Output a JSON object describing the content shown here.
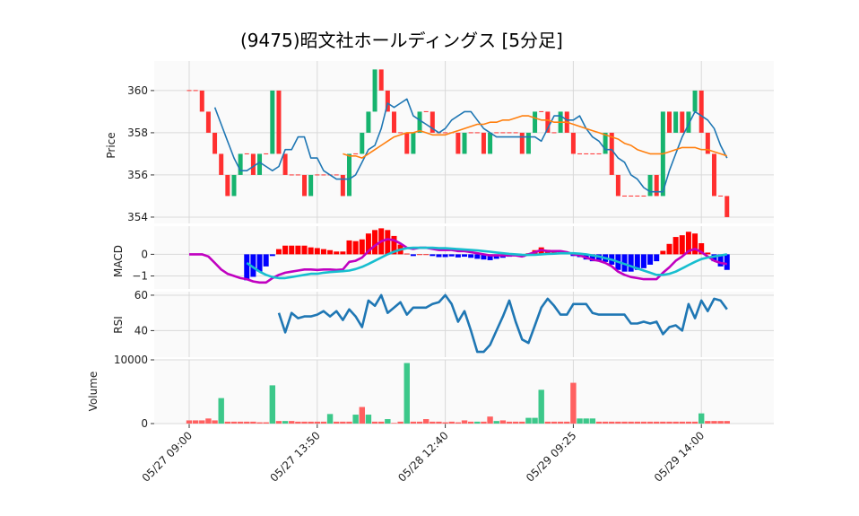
{
  "chart_data": {
    "type": "candlestick",
    "title": "(9475)昭文社ホールディングス [5分足]",
    "x_tick_labels": [
      "05/27 09:00",
      "05/27 13:50",
      "05/28 12:40",
      "05/29 09:25",
      "05/29 14:00"
    ],
    "x_tick_index": [
      0,
      20,
      40,
      60,
      80
    ],
    "colors": {
      "up": "#16b36e",
      "down": "#ff3030",
      "ma_short": "#1f77b4",
      "ma_long": "#ff7f0e",
      "macd": "#c000c0",
      "signal": "#17becf",
      "hist_pos": "#ff0000",
      "hist_neg": "#0000ff",
      "rsi": "#1f77b4",
      "vol_up": "#3cc88a",
      "vol_down": "#ff6060"
    },
    "panels": {
      "price": {
        "ylabel": "Price",
        "ylim": [
          353.7,
          361.4
        ],
        "yticks": [
          354,
          356,
          358,
          360
        ]
      },
      "macd": {
        "ylabel": "MACD",
        "ylim": [
          -1.6,
          1.3
        ],
        "yticks": [
          0,
          -1
        ],
        "ytick_labels": [
          "0",
          "−1"
        ]
      },
      "rsi": {
        "ylabel": "RSI",
        "ylim": [
          25,
          62
        ],
        "yticks": [
          40,
          60
        ]
      },
      "volume": {
        "ylabel": "Volume",
        "ylim": [
          0,
          10000
        ],
        "yticks": [
          0,
          10000
        ]
      }
    },
    "close": [
      360,
      360,
      359,
      358,
      357,
      356,
      355,
      356,
      357,
      357,
      356,
      357,
      357,
      360,
      357,
      356,
      356,
      356,
      355,
      356,
      356,
      356,
      356,
      356,
      355,
      357,
      357,
      358,
      359,
      361,
      360,
      359,
      358,
      358,
      357,
      358,
      359,
      359,
      358,
      358,
      358,
      358,
      357,
      358,
      358,
      358,
      357,
      358,
      358,
      358,
      358,
      358,
      357,
      358,
      359,
      359,
      358,
      358,
      359,
      358,
      357,
      357,
      357,
      357,
      357,
      358,
      356,
      355,
      355,
      355,
      355,
      355,
      356,
      355,
      359,
      358,
      359,
      358,
      359,
      360,
      358,
      357,
      355,
      355,
      354
    ],
    "ma_short": [
      null,
      null,
      null,
      null,
      359.2,
      358.4,
      357.6,
      356.8,
      356.2,
      356.2,
      356.4,
      356.6,
      356.4,
      356.2,
      356.4,
      357.2,
      357.2,
      357.8,
      357.8,
      356.8,
      356.8,
      356.2,
      356.0,
      355.8,
      355.8,
      355.8,
      356.0,
      356.6,
      357.2,
      357.4,
      358.2,
      359.4,
      359.2,
      359.4,
      359.6,
      358.8,
      358.6,
      358.4,
      358.2,
      358.0,
      358.2,
      358.6,
      358.8,
      359.0,
      359.0,
      358.6,
      358.2,
      358.0,
      357.8,
      357.8,
      357.8,
      357.8,
      357.8,
      357.8,
      357.8,
      357.6,
      358.2,
      358.8,
      358.8,
      358.6,
      358.6,
      358.8,
      358.2,
      357.8,
      357.6,
      357.2,
      357.2,
      356.8,
      356.6,
      356.0,
      355.8,
      355.4,
      355.2,
      355.2,
      355.2,
      356.2,
      357.0,
      357.8,
      358.4,
      359.0,
      358.8,
      358.6,
      358.2,
      357.4,
      356.8
    ],
    "ma_long": [
      null,
      null,
      null,
      null,
      null,
      null,
      null,
      null,
      null,
      null,
      null,
      null,
      null,
      null,
      null,
      null,
      null,
      null,
      null,
      null,
      null,
      null,
      null,
      null,
      357.0,
      356.9,
      356.9,
      356.8,
      357.0,
      357.2,
      357.4,
      357.6,
      357.8,
      357.9,
      358.0,
      358.0,
      358.1,
      358.0,
      357.9,
      357.9,
      357.9,
      358.0,
      358.1,
      358.2,
      358.3,
      358.4,
      358.4,
      358.5,
      358.5,
      358.6,
      358.6,
      358.7,
      358.8,
      358.8,
      358.7,
      358.6,
      358.6,
      358.5,
      358.5,
      358.5,
      358.4,
      358.3,
      358.2,
      358.1,
      358.0,
      357.9,
      357.8,
      357.7,
      357.5,
      357.4,
      357.2,
      357.1,
      357.0,
      357.0,
      357.0,
      357.1,
      357.2,
      357.3,
      357.3,
      357.3,
      357.2,
      357.2,
      357.1,
      357.0,
      356.9
    ],
    "macd": [
      0.0,
      0.0,
      0.0,
      -0.1,
      -0.4,
      -0.7,
      -0.9,
      -1.0,
      -1.1,
      -1.15,
      -1.25,
      -1.3,
      -1.3,
      -1.1,
      -0.95,
      -0.85,
      -0.8,
      -0.75,
      -0.7,
      -0.7,
      -0.72,
      -0.7,
      -0.7,
      -0.72,
      -0.7,
      -0.35,
      -0.3,
      -0.15,
      0.15,
      0.4,
      0.6,
      0.7,
      0.65,
      0.5,
      0.3,
      0.25,
      0.3,
      0.3,
      0.25,
      0.2,
      0.2,
      0.2,
      0.15,
      0.15,
      0.1,
      0.05,
      0.0,
      -0.05,
      -0.05,
      -0.05,
      -0.05,
      -0.05,
      -0.1,
      0.0,
      0.1,
      0.2,
      0.15,
      0.15,
      0.15,
      0.1,
      0.0,
      -0.05,
      -0.15,
      -0.25,
      -0.3,
      -0.4,
      -0.55,
      -0.8,
      -0.95,
      -1.05,
      -1.1,
      -1.15,
      -1.15,
      -1.15,
      -0.85,
      -0.6,
      -0.3,
      -0.1,
      0.15,
      0.25,
      0.1,
      -0.1,
      -0.3,
      -0.4,
      -0.45
    ],
    "signal": [
      null,
      null,
      null,
      null,
      null,
      null,
      null,
      null,
      null,
      -0.4,
      -0.6,
      -0.8,
      -0.95,
      -1.05,
      -1.1,
      -1.1,
      -1.05,
      -1.0,
      -0.95,
      -0.9,
      -0.9,
      -0.85,
      -0.82,
      -0.8,
      -0.78,
      -0.75,
      -0.68,
      -0.58,
      -0.45,
      -0.3,
      -0.15,
      0.0,
      0.12,
      0.22,
      0.28,
      0.3,
      0.3,
      0.3,
      0.3,
      0.28,
      0.28,
      0.26,
      0.24,
      0.22,
      0.2,
      0.18,
      0.15,
      0.12,
      0.08,
      0.05,
      0.02,
      0.0,
      -0.02,
      -0.03,
      -0.02,
      0.0,
      0.02,
      0.03,
      0.05,
      0.05,
      0.05,
      0.03,
      0.0,
      -0.05,
      -0.1,
      -0.18,
      -0.25,
      -0.35,
      -0.45,
      -0.55,
      -0.65,
      -0.75,
      -0.85,
      -0.95,
      -0.95,
      -0.9,
      -0.8,
      -0.65,
      -0.5,
      -0.35,
      -0.22,
      -0.15,
      -0.1,
      -0.05,
      0.0
    ],
    "rsi": [
      null,
      null,
      null,
      null,
      null,
      null,
      null,
      null,
      null,
      null,
      null,
      null,
      null,
      null,
      50,
      39,
      50,
      47,
      48,
      48,
      49,
      51,
      48,
      51,
      46,
      52,
      48,
      42,
      57,
      54,
      60,
      50,
      53,
      56,
      49,
      53,
      53,
      53,
      55,
      56,
      60,
      55,
      45,
      51,
      40,
      28,
      28,
      32,
      40,
      48,
      57,
      45,
      35,
      33,
      43,
      53,
      58,
      54,
      49,
      49,
      55,
      55,
      55,
      50,
      49,
      49,
      49,
      49,
      49,
      44,
      44,
      45,
      44,
      45,
      38,
      42,
      43,
      40,
      55,
      47,
      57,
      51,
      58,
      57,
      52
    ],
    "volume": [
      500,
      500,
      500,
      800,
      500,
      4000,
      300,
      300,
      300,
      300,
      300,
      200,
      200,
      6000,
      400,
      400,
      400,
      300,
      300,
      300,
      300,
      300,
      1500,
      300,
      300,
      300,
      1400,
      2600,
      1400,
      300,
      300,
      700,
      100,
      300,
      9500,
      300,
      300,
      700,
      300,
      300,
      200,
      300,
      200,
      500,
      300,
      300,
      300,
      1100,
      400,
      500,
      300,
      300,
      300,
      900,
      900,
      5300,
      300,
      300,
      300,
      300,
      6400,
      800,
      800,
      800,
      300,
      300,
      300,
      300,
      300,
      300,
      300,
      300,
      300,
      300,
      300,
      300,
      300,
      300,
      300,
      300,
      1600,
      400,
      400,
      400,
      400
    ],
    "volume_up": [
      0,
      0,
      0,
      0,
      0,
      1,
      0,
      0,
      0,
      0,
      0,
      0,
      0,
      1,
      0,
      1,
      0,
      0,
      0,
      0,
      0,
      0,
      1,
      0,
      0,
      0,
      1,
      0,
      1,
      0,
      0,
      1,
      0,
      0,
      1,
      0,
      0,
      0,
      0,
      0,
      0,
      0,
      0,
      0,
      0,
      1,
      0,
      0,
      1,
      0,
      0,
      0,
      0,
      1,
      1,
      1,
      0,
      0,
      0,
      0,
      0,
      1,
      1,
      1,
      0,
      0,
      0,
      0,
      0,
      0,
      0,
      0,
      0,
      0,
      0,
      0,
      0,
      0,
      0,
      0,
      1,
      0,
      0,
      0,
      0
    ]
  }
}
